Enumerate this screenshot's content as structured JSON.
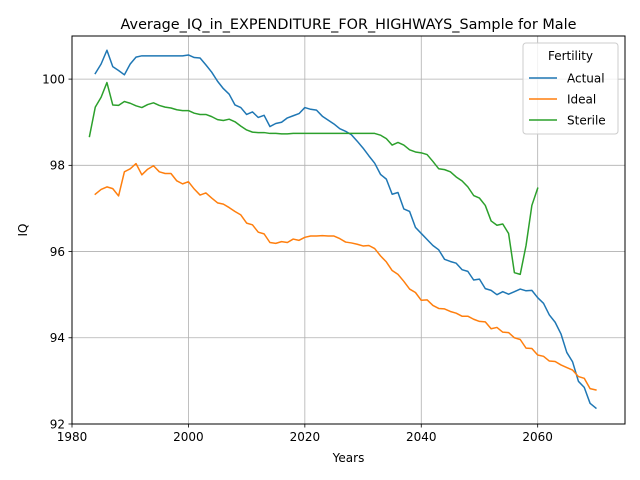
{
  "chart_data": {
    "type": "line",
    "title": "Average_IQ_in_EXPENDITURE_FOR_HIGHWAYS_Sample for Male",
    "xlabel": "Years",
    "ylabel": "IQ",
    "xlim": [
      1980,
      2075
    ],
    "ylim": [
      92,
      101
    ],
    "xticks": [
      1980,
      2000,
      2020,
      2040,
      2060
    ],
    "yticks": [
      92,
      94,
      96,
      98,
      100
    ],
    "grid": true,
    "legend": {
      "title": "Fertility",
      "position": "top-right"
    },
    "series": [
      {
        "name": "Actual",
        "color": "#1f77b4",
        "x": [
          1984,
          1985,
          1986,
          1987,
          1988,
          1989,
          1990,
          1991,
          1992,
          1993,
          1994,
          1995,
          1996,
          1997,
          1998,
          1999,
          2000,
          2001,
          2002,
          2003,
          2004,
          2005,
          2006,
          2007,
          2008,
          2009,
          2010,
          2011,
          2012,
          2013,
          2014,
          2015,
          2016,
          2017,
          2018,
          2019,
          2020,
          2021,
          2022,
          2023,
          2024,
          2025,
          2026,
          2027,
          2028,
          2029,
          2030,
          2031,
          2032,
          2033,
          2034,
          2035,
          2036,
          2037,
          2038,
          2039,
          2040,
          2041,
          2042,
          2043,
          2044,
          2045,
          2046,
          2047,
          2048,
          2049,
          2050,
          2051,
          2052,
          2053,
          2054,
          2055,
          2056,
          2057,
          2058,
          2059,
          2060,
          2061,
          2062,
          2063,
          2064,
          2065,
          2066,
          2067,
          2068,
          2069,
          2070
        ],
        "y": [
          100.13,
          100.35,
          100.67,
          100.29,
          100.2,
          100.1,
          100.35,
          100.51,
          100.54,
          100.54,
          100.54,
          100.54,
          100.54,
          100.54,
          100.54,
          100.54,
          100.56,
          100.5,
          100.49,
          100.33,
          100.16,
          99.95,
          99.78,
          99.65,
          99.4,
          99.34,
          99.18,
          99.24,
          99.11,
          99.16,
          98.9,
          98.97,
          99.0,
          99.1,
          99.15,
          99.2,
          99.34,
          99.3,
          99.28,
          99.14,
          99.05,
          98.96,
          98.85,
          98.79,
          98.71,
          98.56,
          98.4,
          98.22,
          98.05,
          97.79,
          97.68,
          97.33,
          97.37,
          96.99,
          96.93,
          96.56,
          96.42,
          96.28,
          96.14,
          96.04,
          95.82,
          95.77,
          95.73,
          95.58,
          95.54,
          95.34,
          95.36,
          95.14,
          95.1,
          95.0,
          95.07,
          95.01,
          95.07,
          95.13,
          95.09,
          95.1,
          94.93,
          94.8,
          94.53,
          94.36,
          94.09,
          93.66,
          93.44,
          92.99,
          92.85,
          92.48,
          92.37
        ]
      },
      {
        "name": "Ideal",
        "color": "#ff7f0e",
        "x": [
          1984,
          1985,
          1986,
          1987,
          1988,
          1989,
          1990,
          1991,
          1992,
          1993,
          1994,
          1995,
          1996,
          1997,
          1998,
          1999,
          2000,
          2001,
          2002,
          2003,
          2004,
          2005,
          2006,
          2007,
          2008,
          2009,
          2010,
          2011,
          2012,
          2013,
          2014,
          2015,
          2016,
          2017,
          2018,
          2019,
          2020,
          2021,
          2022,
          2023,
          2024,
          2025,
          2026,
          2027,
          2028,
          2029,
          2030,
          2031,
          2032,
          2033,
          2034,
          2035,
          2036,
          2037,
          2038,
          2039,
          2040,
          2041,
          2042,
          2043,
          2044,
          2045,
          2046,
          2047,
          2048,
          2049,
          2050,
          2051,
          2052,
          2053,
          2054,
          2055,
          2056,
          2057,
          2058,
          2059,
          2060,
          2061,
          2062,
          2063,
          2064,
          2065,
          2066,
          2067,
          2068,
          2069,
          2070
        ],
        "y": [
          97.33,
          97.44,
          97.5,
          97.46,
          97.29,
          97.85,
          97.92,
          98.04,
          97.78,
          97.91,
          97.99,
          97.85,
          97.81,
          97.81,
          97.64,
          97.57,
          97.62,
          97.45,
          97.31,
          97.36,
          97.24,
          97.13,
          97.1,
          97.02,
          96.93,
          96.85,
          96.66,
          96.62,
          96.45,
          96.41,
          96.21,
          96.19,
          96.23,
          96.21,
          96.29,
          96.26,
          96.33,
          96.36,
          96.36,
          96.37,
          96.36,
          96.36,
          96.3,
          96.22,
          96.2,
          96.17,
          96.13,
          96.14,
          96.07,
          95.9,
          95.76,
          95.56,
          95.47,
          95.31,
          95.13,
          95.05,
          94.87,
          94.88,
          94.75,
          94.68,
          94.67,
          94.61,
          94.57,
          94.5,
          94.5,
          94.43,
          94.38,
          94.37,
          94.21,
          94.24,
          94.13,
          94.12,
          94.0,
          93.96,
          93.76,
          93.75,
          93.6,
          93.57,
          93.46,
          93.45,
          93.37,
          93.31,
          93.25,
          93.1,
          93.06,
          92.82,
          92.79
        ]
      },
      {
        "name": "Sterile",
        "color": "#2ca02c",
        "x": [
          1983,
          1984,
          1985,
          1986,
          1987,
          1988,
          1989,
          1990,
          1991,
          1992,
          1993,
          1994,
          1995,
          1996,
          1997,
          1998,
          1999,
          2000,
          2001,
          2002,
          2003,
          2004,
          2005,
          2006,
          2007,
          2008,
          2009,
          2010,
          2011,
          2012,
          2013,
          2014,
          2015,
          2016,
          2017,
          2018,
          2019,
          2020,
          2021,
          2022,
          2023,
          2024,
          2025,
          2026,
          2027,
          2028,
          2029,
          2030,
          2031,
          2032,
          2033,
          2034,
          2035,
          2036,
          2037,
          2038,
          2039,
          2040,
          2041,
          2042,
          2043,
          2044,
          2045,
          2046,
          2047,
          2048,
          2049,
          2050,
          2051,
          2052,
          2053,
          2054,
          2055,
          2056,
          2057,
          2058,
          2059,
          2060
        ],
        "y": [
          98.67,
          99.35,
          99.58,
          99.92,
          99.4,
          99.39,
          99.48,
          99.44,
          99.38,
          99.34,
          99.41,
          99.45,
          99.39,
          99.35,
          99.33,
          99.29,
          99.27,
          99.27,
          99.21,
          99.18,
          99.18,
          99.13,
          99.06,
          99.04,
          99.07,
          99.01,
          98.91,
          98.82,
          98.77,
          98.76,
          98.76,
          98.74,
          98.74,
          98.73,
          98.73,
          98.74,
          98.74,
          98.74,
          98.74,
          98.74,
          98.74,
          98.74,
          98.74,
          98.74,
          98.74,
          98.74,
          98.74,
          98.74,
          98.74,
          98.74,
          98.7,
          98.62,
          98.47,
          98.53,
          98.47,
          98.36,
          98.31,
          98.29,
          98.25,
          98.09,
          97.92,
          97.9,
          97.85,
          97.73,
          97.64,
          97.5,
          97.3,
          97.24,
          97.07,
          96.71,
          96.61,
          96.64,
          96.42,
          95.51,
          95.47,
          96.14,
          97.07,
          97.47
        ]
      }
    ]
  }
}
